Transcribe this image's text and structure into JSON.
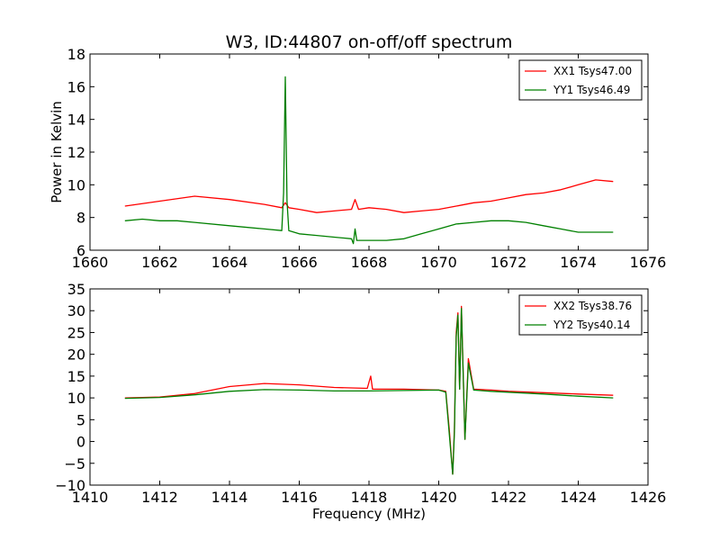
{
  "chart_data": [
    {
      "type": "line",
      "title": "W3, ID:44807 on-off/off spectrum",
      "xlabel": "",
      "ylabel": "Power in Kelvin",
      "xlim": [
        1660,
        1676
      ],
      "ylim": [
        6,
        18
      ],
      "xticks": [
        "1660",
        "1662",
        "1664",
        "1666",
        "1668",
        "1670",
        "1672",
        "1674",
        "1676"
      ],
      "yticks": [
        "6",
        "8",
        "10",
        "12",
        "14",
        "16",
        "18"
      ],
      "legend_position": "top-right",
      "grid": false,
      "series": [
        {
          "name": "XX1 Tsys47.00",
          "color": "#ff0000",
          "points": [
            [
              1661.0,
              8.7
            ],
            [
              1662.0,
              9.0
            ],
            [
              1663.0,
              9.3
            ],
            [
              1664.0,
              9.1
            ],
            [
              1665.0,
              8.8
            ],
            [
              1665.5,
              8.6
            ],
            [
              1665.6,
              8.9
            ],
            [
              1665.7,
              8.6
            ],
            [
              1666.0,
              8.5
            ],
            [
              1666.5,
              8.3
            ],
            [
              1667.0,
              8.4
            ],
            [
              1667.5,
              8.5
            ],
            [
              1667.6,
              9.1
            ],
            [
              1667.7,
              8.5
            ],
            [
              1668.0,
              8.6
            ],
            [
              1668.5,
              8.5
            ],
            [
              1669.0,
              8.3
            ],
            [
              1669.5,
              8.4
            ],
            [
              1670.0,
              8.5
            ],
            [
              1670.5,
              8.7
            ],
            [
              1671.0,
              8.9
            ],
            [
              1671.5,
              9.0
            ],
            [
              1672.0,
              9.2
            ],
            [
              1672.5,
              9.4
            ],
            [
              1673.0,
              9.5
            ],
            [
              1673.5,
              9.7
            ],
            [
              1674.0,
              10.0
            ],
            [
              1674.5,
              10.3
            ],
            [
              1675.0,
              10.2
            ]
          ]
        },
        {
          "name": "YY1 Tsys46.49",
          "color": "#008000",
          "points": [
            [
              1661.0,
              7.8
            ],
            [
              1661.5,
              7.9
            ],
            [
              1662.0,
              7.8
            ],
            [
              1662.5,
              7.8
            ],
            [
              1663.0,
              7.7
            ],
            [
              1664.0,
              7.5
            ],
            [
              1665.0,
              7.3
            ],
            [
              1665.5,
              7.2
            ],
            [
              1665.55,
              9.5
            ],
            [
              1665.6,
              16.6
            ],
            [
              1665.65,
              9.0
            ],
            [
              1665.7,
              7.2
            ],
            [
              1666.0,
              7.0
            ],
            [
              1666.5,
              6.9
            ],
            [
              1667.0,
              6.8
            ],
            [
              1667.5,
              6.7
            ],
            [
              1667.55,
              6.4
            ],
            [
              1667.6,
              7.3
            ],
            [
              1667.65,
              6.6
            ],
            [
              1668.0,
              6.6
            ],
            [
              1668.5,
              6.6
            ],
            [
              1669.0,
              6.7
            ],
            [
              1669.5,
              7.0
            ],
            [
              1670.0,
              7.3
            ],
            [
              1670.5,
              7.6
            ],
            [
              1671.0,
              7.7
            ],
            [
              1671.5,
              7.8
            ],
            [
              1672.0,
              7.8
            ],
            [
              1672.5,
              7.7
            ],
            [
              1673.0,
              7.5
            ],
            [
              1673.5,
              7.3
            ],
            [
              1674.0,
              7.1
            ],
            [
              1674.5,
              7.1
            ],
            [
              1675.0,
              7.1
            ]
          ]
        }
      ]
    },
    {
      "type": "line",
      "title": "",
      "xlabel": "Frequency (MHz)",
      "ylabel": "",
      "xlim": [
        1410,
        1426
      ],
      "ylim": [
        -10,
        35
      ],
      "xticks": [
        "1410",
        "1412",
        "1414",
        "1416",
        "1418",
        "1420",
        "1422",
        "1424",
        "1426"
      ],
      "yticks": [
        "−10",
        "−5",
        "0",
        "5",
        "10",
        "15",
        "20",
        "25",
        "30",
        "35"
      ],
      "legend_position": "top-right",
      "grid": false,
      "series": [
        {
          "name": "XX2 Tsys38.76",
          "color": "#ff0000",
          "points": [
            [
              1411.0,
              10.0
            ],
            [
              1412.0,
              10.2
            ],
            [
              1413.0,
              11.0
            ],
            [
              1414.0,
              12.6
            ],
            [
              1415.0,
              13.3
            ],
            [
              1416.0,
              13.0
            ],
            [
              1417.0,
              12.4
            ],
            [
              1417.95,
              12.2
            ],
            [
              1418.05,
              15.0
            ],
            [
              1418.1,
              12.0
            ],
            [
              1419.0,
              12.0
            ],
            [
              1420.0,
              11.8
            ],
            [
              1420.2,
              11.5
            ],
            [
              1420.3,
              3.0
            ],
            [
              1420.4,
              -7.5
            ],
            [
              1420.45,
              3.0
            ],
            [
              1420.5,
              25.0
            ],
            [
              1420.55,
              29.5
            ],
            [
              1420.6,
              12.0
            ],
            [
              1420.65,
              31.0
            ],
            [
              1420.75,
              0.5
            ],
            [
              1420.85,
              19.0
            ],
            [
              1421.0,
              12.0
            ],
            [
              1421.5,
              11.8
            ],
            [
              1422.0,
              11.5
            ],
            [
              1423.0,
              11.2
            ],
            [
              1424.0,
              10.9
            ],
            [
              1425.0,
              10.6
            ]
          ]
        },
        {
          "name": "YY2 Tsys40.14",
          "color": "#008000",
          "points": [
            [
              1411.0,
              9.9
            ],
            [
              1412.0,
              10.1
            ],
            [
              1413.0,
              10.7
            ],
            [
              1414.0,
              11.5
            ],
            [
              1415.0,
              11.9
            ],
            [
              1416.0,
              11.8
            ],
            [
              1417.0,
              11.6
            ],
            [
              1418.0,
              11.6
            ],
            [
              1419.0,
              11.7
            ],
            [
              1420.0,
              11.8
            ],
            [
              1420.2,
              11.3
            ],
            [
              1420.3,
              2.0
            ],
            [
              1420.4,
              -7.5
            ],
            [
              1420.45,
              2.0
            ],
            [
              1420.5,
              24.0
            ],
            [
              1420.55,
              29.0
            ],
            [
              1420.6,
              12.0
            ],
            [
              1420.65,
              30.5
            ],
            [
              1420.75,
              0.5
            ],
            [
              1420.85,
              18.0
            ],
            [
              1421.0,
              11.8
            ],
            [
              1421.5,
              11.5
            ],
            [
              1422.0,
              11.3
            ],
            [
              1423.0,
              10.9
            ],
            [
              1424.0,
              10.4
            ],
            [
              1425.0,
              10.0
            ]
          ]
        }
      ]
    }
  ]
}
